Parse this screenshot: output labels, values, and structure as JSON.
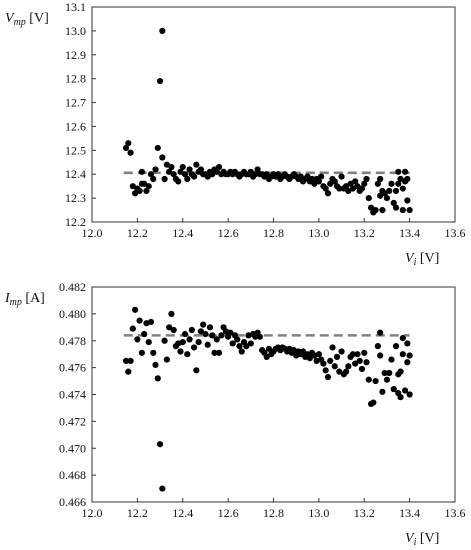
{
  "chart_data": [
    {
      "type": "scatter",
      "ylabel": {
        "var": "V",
        "sub": "mp",
        "unit": " [V]"
      },
      "xlabel": {
        "var": "V",
        "sub": "i",
        "unit": " [V]"
      },
      "xlim": [
        12.0,
        13.6
      ],
      "ylim": [
        12.2,
        13.1
      ],
      "xticks": [
        "12.0",
        "12.2",
        "12.4",
        "12.6",
        "12.8",
        "13.0",
        "13.2",
        "13.4",
        "13.6"
      ],
      "yticks": [
        "12.2",
        "12.3",
        "12.4",
        "12.5",
        "12.6",
        "12.7",
        "12.8",
        "12.9",
        "13.0",
        "13.1"
      ],
      "reference_line": {
        "y": 12.406,
        "x_start": 12.14,
        "x_end": 13.4,
        "style": "dashed",
        "color": "#808080"
      },
      "marker_color": "#000000",
      "points": [
        [
          12.15,
          12.51
        ],
        [
          12.16,
          12.53
        ],
        [
          12.17,
          12.49
        ],
        [
          12.18,
          12.35
        ],
        [
          12.19,
          12.32
        ],
        [
          12.2,
          12.34
        ],
        [
          12.21,
          12.33
        ],
        [
          12.22,
          12.36
        ],
        [
          12.22,
          12.41
        ],
        [
          12.23,
          12.36
        ],
        [
          12.24,
          12.33
        ],
        [
          12.25,
          12.35
        ],
        [
          12.26,
          12.4
        ],
        [
          12.27,
          12.38
        ],
        [
          12.28,
          12.42
        ],
        [
          12.29,
          12.51
        ],
        [
          12.3,
          12.79
        ],
        [
          12.31,
          13.0
        ],
        [
          12.31,
          12.47
        ],
        [
          12.32,
          12.38
        ],
        [
          12.33,
          12.44
        ],
        [
          12.34,
          12.41
        ],
        [
          12.35,
          12.43
        ],
        [
          12.36,
          12.4
        ],
        [
          12.37,
          12.38
        ],
        [
          12.38,
          12.37
        ],
        [
          12.39,
          12.41
        ],
        [
          12.4,
          12.43
        ],
        [
          12.41,
          12.4
        ],
        [
          12.42,
          12.38
        ],
        [
          12.43,
          12.42
        ],
        [
          12.44,
          12.4
        ],
        [
          12.45,
          12.39
        ],
        [
          12.46,
          12.44
        ],
        [
          12.47,
          12.41
        ],
        [
          12.48,
          12.42
        ],
        [
          12.49,
          12.4
        ],
        [
          12.5,
          12.4
        ],
        [
          12.51,
          12.39
        ],
        [
          12.52,
          12.41
        ],
        [
          12.53,
          12.4
        ],
        [
          12.54,
          12.42
        ],
        [
          12.55,
          12.41
        ],
        [
          12.56,
          12.43
        ],
        [
          12.57,
          12.4
        ],
        [
          12.58,
          12.41
        ],
        [
          12.59,
          12.4
        ],
        [
          12.6,
          12.4
        ],
        [
          12.61,
          12.41
        ],
        [
          12.62,
          12.4
        ],
        [
          12.63,
          12.41
        ],
        [
          12.64,
          12.4
        ],
        [
          12.65,
          12.39
        ],
        [
          12.66,
          12.4
        ],
        [
          12.67,
          12.41
        ],
        [
          12.68,
          12.4
        ],
        [
          12.69,
          12.4
        ],
        [
          12.7,
          12.41
        ],
        [
          12.71,
          12.39
        ],
        [
          12.72,
          12.4
        ],
        [
          12.73,
          12.42
        ],
        [
          12.74,
          12.4
        ],
        [
          12.75,
          12.4
        ],
        [
          12.76,
          12.39
        ],
        [
          12.77,
          12.4
        ],
        [
          12.78,
          12.38
        ],
        [
          12.79,
          12.39
        ],
        [
          12.8,
          12.4
        ],
        [
          12.81,
          12.39
        ],
        [
          12.82,
          12.4
        ],
        [
          12.83,
          12.38
        ],
        [
          12.84,
          12.39
        ],
        [
          12.85,
          12.4
        ],
        [
          12.86,
          12.39
        ],
        [
          12.87,
          12.38
        ],
        [
          12.88,
          12.39
        ],
        [
          12.89,
          12.4
        ],
        [
          12.9,
          12.39
        ],
        [
          12.91,
          12.38
        ],
        [
          12.92,
          12.39
        ],
        [
          12.93,
          12.37
        ],
        [
          12.94,
          12.38
        ],
        [
          12.95,
          12.39
        ],
        [
          12.96,
          12.37
        ],
        [
          12.97,
          12.38
        ],
        [
          12.98,
          12.36
        ],
        [
          12.99,
          12.38
        ],
        [
          13.0,
          12.37
        ],
        [
          13.01,
          12.39
        ],
        [
          13.02,
          12.35
        ],
        [
          13.03,
          12.34
        ],
        [
          13.04,
          12.32
        ],
        [
          13.05,
          12.36
        ],
        [
          13.06,
          12.38
        ],
        [
          13.07,
          12.37
        ],
        [
          13.08,
          12.35
        ],
        [
          13.09,
          12.34
        ],
        [
          13.1,
          12.39
        ],
        [
          13.11,
          12.34
        ],
        [
          13.12,
          12.35
        ],
        [
          13.13,
          12.33
        ],
        [
          13.14,
          12.36
        ],
        [
          13.15,
          12.34
        ],
        [
          13.16,
          12.37
        ],
        [
          13.17,
          12.35
        ],
        [
          13.18,
          12.33
        ],
        [
          13.19,
          12.34
        ],
        [
          13.2,
          12.36
        ],
        [
          13.21,
          12.38
        ],
        [
          13.22,
          12.3
        ],
        [
          13.23,
          12.26
        ],
        [
          13.24,
          12.24
        ],
        [
          13.25,
          12.25
        ],
        [
          13.26,
          12.36
        ],
        [
          13.27,
          12.38
        ],
        [
          13.27,
          12.31
        ],
        [
          13.28,
          12.33
        ],
        [
          13.28,
          12.25
        ],
        [
          13.29,
          12.32
        ],
        [
          13.3,
          12.3
        ],
        [
          13.31,
          12.33
        ],
        [
          13.32,
          12.36
        ],
        [
          13.33,
          12.28
        ],
        [
          13.34,
          12.33
        ],
        [
          13.34,
          12.26
        ],
        [
          13.35,
          12.41
        ],
        [
          13.35,
          12.36
        ],
        [
          13.36,
          12.38
        ],
        [
          13.37,
          12.34
        ],
        [
          13.37,
          12.25
        ],
        [
          13.38,
          12.41
        ],
        [
          13.38,
          12.37
        ],
        [
          13.39,
          12.38
        ],
        [
          13.39,
          12.29
        ],
        [
          13.4,
          12.25
        ]
      ]
    },
    {
      "type": "scatter",
      "ylabel": {
        "var": "I",
        "sub": "mp",
        "unit": " [A]"
      },
      "xlabel": {
        "var": "V",
        "sub": "i",
        "unit": " [V]"
      },
      "xlim": [
        12.0,
        13.6
      ],
      "ylim": [
        0.466,
        0.482
      ],
      "xticks": [
        "12.0",
        "12.2",
        "12.4",
        "12.6",
        "12.8",
        "13.0",
        "13.2",
        "13.4",
        "13.6"
      ],
      "yticks": [
        "0.466",
        "0.468",
        "0.470",
        "0.472",
        "0.474",
        "0.476",
        "0.478",
        "0.480",
        "0.482"
      ],
      "reference_line": {
        "y": 0.4784,
        "x_start": 12.14,
        "x_end": 13.4,
        "style": "dashed",
        "color": "#808080"
      },
      "marker_color": "#000000",
      "points": [
        [
          12.15,
          0.4765
        ],
        [
          12.16,
          0.4757
        ],
        [
          12.17,
          0.4765
        ],
        [
          12.18,
          0.4789
        ],
        [
          12.19,
          0.4803
        ],
        [
          12.2,
          0.4781
        ],
        [
          12.21,
          0.4795
        ],
        [
          12.22,
          0.4771
        ],
        [
          12.23,
          0.4785
        ],
        [
          12.24,
          0.4793
        ],
        [
          12.25,
          0.4779
        ],
        [
          12.26,
          0.4794
        ],
        [
          12.27,
          0.4771
        ],
        [
          12.28,
          0.4762
        ],
        [
          12.29,
          0.4752
        ],
        [
          12.3,
          0.4703
        ],
        [
          12.31,
          0.467
        ],
        [
          12.32,
          0.478
        ],
        [
          12.33,
          0.4766
        ],
        [
          12.34,
          0.479
        ],
        [
          12.35,
          0.48
        ],
        [
          12.36,
          0.4788
        ],
        [
          12.37,
          0.4776
        ],
        [
          12.38,
          0.4778
        ],
        [
          12.39,
          0.4772
        ],
        [
          12.4,
          0.4779
        ],
        [
          12.41,
          0.4785
        ],
        [
          12.42,
          0.477
        ],
        [
          12.43,
          0.4781
        ],
        [
          12.44,
          0.4788
        ],
        [
          12.45,
          0.4775
        ],
        [
          12.46,
          0.4758
        ],
        [
          12.47,
          0.4779
        ],
        [
          12.48,
          0.4787
        ],
        [
          12.49,
          0.4792
        ],
        [
          12.5,
          0.4785
        ],
        [
          12.51,
          0.4777
        ],
        [
          12.52,
          0.479
        ],
        [
          12.53,
          0.4784
        ],
        [
          12.54,
          0.4771
        ],
        [
          12.55,
          0.4781
        ],
        [
          12.56,
          0.4771
        ],
        [
          12.57,
          0.4784
        ],
        [
          12.58,
          0.479
        ],
        [
          12.59,
          0.4787
        ],
        [
          12.6,
          0.4783
        ],
        [
          12.61,
          0.4786
        ],
        [
          12.62,
          0.4778
        ],
        [
          12.63,
          0.4784
        ],
        [
          12.64,
          0.4781
        ],
        [
          12.65,
          0.4776
        ],
        [
          12.66,
          0.4772
        ],
        [
          12.67,
          0.4779
        ],
        [
          12.68,
          0.4776
        ],
        [
          12.69,
          0.4784
        ],
        [
          12.7,
          0.4778
        ],
        [
          12.71,
          0.4785
        ],
        [
          12.72,
          0.4783
        ],
        [
          12.73,
          0.4786
        ],
        [
          12.74,
          0.4783
        ],
        [
          12.75,
          0.4773
        ],
        [
          12.76,
          0.4771
        ],
        [
          12.77,
          0.4768
        ],
        [
          12.78,
          0.4774
        ],
        [
          12.79,
          0.477
        ],
        [
          12.8,
          0.4772
        ],
        [
          12.81,
          0.4774
        ],
        [
          12.82,
          0.4775
        ],
        [
          12.83,
          0.4773
        ],
        [
          12.84,
          0.4775
        ],
        [
          12.85,
          0.4774
        ],
        [
          12.86,
          0.4772
        ],
        [
          12.87,
          0.4774
        ],
        [
          12.88,
          0.4771
        ],
        [
          12.89,
          0.4773
        ],
        [
          12.9,
          0.4769
        ],
        [
          12.91,
          0.4772
        ],
        [
          12.92,
          0.477
        ],
        [
          12.93,
          0.4772
        ],
        [
          12.94,
          0.4768
        ],
        [
          12.95,
          0.477
        ],
        [
          12.96,
          0.4767
        ],
        [
          12.97,
          0.4771
        ],
        [
          12.98,
          0.4769
        ],
        [
          12.99,
          0.4765
        ],
        [
          13.0,
          0.477
        ],
        [
          13.01,
          0.4766
        ],
        [
          13.02,
          0.4763
        ],
        [
          13.03,
          0.4758
        ],
        [
          13.04,
          0.4753
        ],
        [
          13.05,
          0.4765
        ],
        [
          13.06,
          0.4775
        ],
        [
          13.07,
          0.4761
        ],
        [
          13.08,
          0.4768
        ],
        [
          13.09,
          0.4757
        ],
        [
          13.1,
          0.4772
        ],
        [
          13.11,
          0.4755
        ],
        [
          13.12,
          0.4757
        ],
        [
          13.13,
          0.4761
        ],
        [
          13.14,
          0.4768
        ],
        [
          13.15,
          0.477
        ],
        [
          13.16,
          0.4763
        ],
        [
          13.17,
          0.477
        ],
        [
          13.18,
          0.4765
        ],
        [
          13.19,
          0.4759
        ],
        [
          13.2,
          0.4771
        ],
        [
          13.21,
          0.4764
        ],
        [
          13.22,
          0.4751
        ],
        [
          13.23,
          0.4733
        ],
        [
          13.24,
          0.4734
        ],
        [
          13.25,
          0.475
        ],
        [
          13.26,
          0.4776
        ],
        [
          13.27,
          0.4786
        ],
        [
          13.27,
          0.4769
        ],
        [
          13.28,
          0.4742
        ],
        [
          13.29,
          0.4756
        ],
        [
          13.3,
          0.4751
        ],
        [
          13.31,
          0.4756
        ],
        [
          13.32,
          0.4766
        ],
        [
          13.33,
          0.4744
        ],
        [
          13.34,
          0.4776
        ],
        [
          13.35,
          0.4755
        ],
        [
          13.35,
          0.4741
        ],
        [
          13.36,
          0.4757
        ],
        [
          13.36,
          0.4738
        ],
        [
          13.37,
          0.4782
        ],
        [
          13.37,
          0.477
        ],
        [
          13.38,
          0.4743
        ],
        [
          13.39,
          0.4764
        ],
        [
          13.39,
          0.4778
        ],
        [
          13.4,
          0.4769
        ],
        [
          13.4,
          0.474
        ]
      ]
    }
  ]
}
